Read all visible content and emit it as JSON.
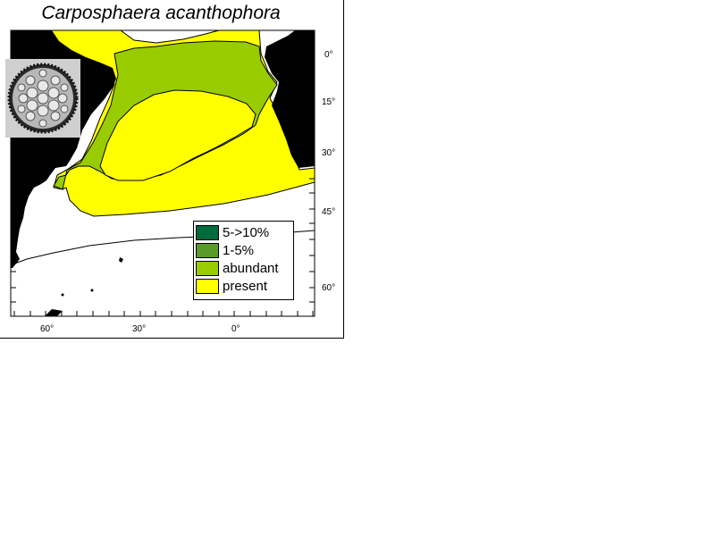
{
  "title": "Carposphaera acanthophora",
  "legend": [
    {
      "label": "5->10%",
      "color": "#006b3c"
    },
    {
      "label": "1-5%",
      "color": "#5a9a2a"
    },
    {
      "label": "abundant",
      "color": "#99cc00"
    },
    {
      "label": "present",
      "color": "#ffff00"
    }
  ],
  "lat_labels": [
    "0°",
    "15°",
    "30°",
    "45°",
    "60°"
  ],
  "lon_labels": [
    "60°",
    "30°",
    "0°"
  ],
  "colors": {
    "land": "#000000",
    "ocean": "#ffffff",
    "present": "#ffff00",
    "abundant": "#99cc00"
  }
}
